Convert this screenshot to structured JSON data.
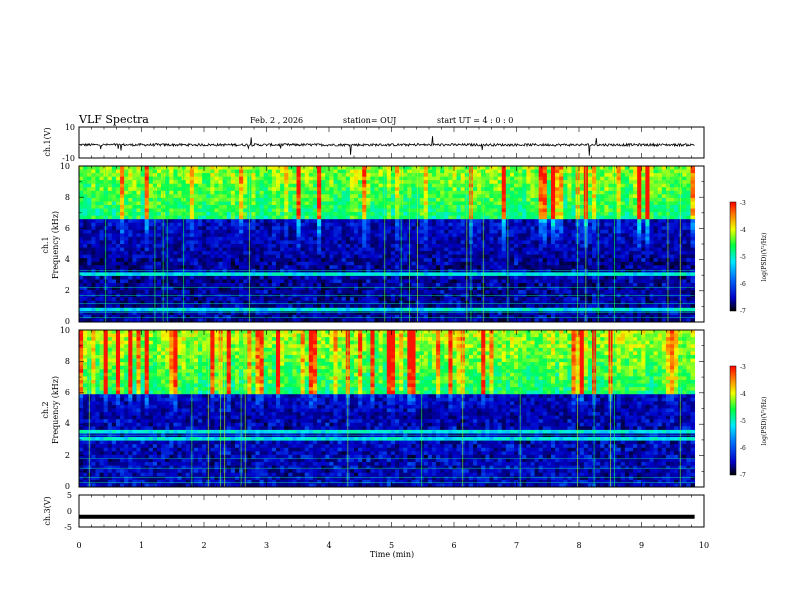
{
  "header": {
    "title": "VLF Spectra",
    "date": "Feb. 2  , 2026",
    "station": "station= OUJ",
    "start": "start  UT =   4 : 0  : 0"
  },
  "colors": {
    "spec_low": "#00004a",
    "spec_mid": "#00e8ff",
    "spec_high": "#ff2000"
  },
  "chart_data": [
    {
      "type": "line",
      "name": "ch1-waveform",
      "ylabel": "ch.1(V)",
      "ylim": [
        -10,
        10
      ],
      "yticks": [
        "10",
        "-10"
      ],
      "xlim": [
        0,
        10
      ],
      "baseline": -1.5
    },
    {
      "type": "heatmap",
      "name": "ch1-spectrogram",
      "ylabel_top": "ch.1",
      "ylabel": "Frequency  (kHz)",
      "ylim": [
        0,
        10
      ],
      "yticks": [
        "0",
        "2",
        "4",
        "6",
        "8",
        "10"
      ],
      "xlim": [
        0,
        10
      ],
      "colorbar": {
        "label": "log(PSD)(V²/Hz)",
        "ticks": [
          "-3",
          "-4",
          "-5",
          "-6",
          "-7"
        ],
        "range": [
          -7,
          -3
        ]
      }
    },
    {
      "type": "heatmap",
      "name": "ch2-spectrogram",
      "ylabel_top": "ch.2",
      "ylabel": "Frequency  (kHz)",
      "ylim": [
        0,
        10
      ],
      "yticks": [
        "0",
        "2",
        "4",
        "6",
        "8",
        "10"
      ],
      "xlim": [
        0,
        10
      ],
      "colorbar": {
        "label": "log(PSD)(V²/Hz)",
        "ticks": [
          "-3",
          "-4",
          "-5",
          "-6",
          "-7"
        ],
        "range": [
          -7,
          -3
        ]
      }
    },
    {
      "type": "line",
      "name": "ch3-waveform",
      "ylabel": "ch.3(V)",
      "ylim": [
        -5,
        5
      ],
      "yticks": [
        "5",
        "0",
        "-5"
      ],
      "xlim": [
        0,
        10
      ],
      "baseline": -1.8
    }
  ],
  "xaxis": {
    "label": "Time  (min)",
    "ticks": [
      "0",
      "1",
      "2",
      "3",
      "4",
      "5",
      "6",
      "7",
      "8",
      "9",
      "10"
    ],
    "range": [
      0,
      10
    ],
    "data_end": 9.85
  }
}
